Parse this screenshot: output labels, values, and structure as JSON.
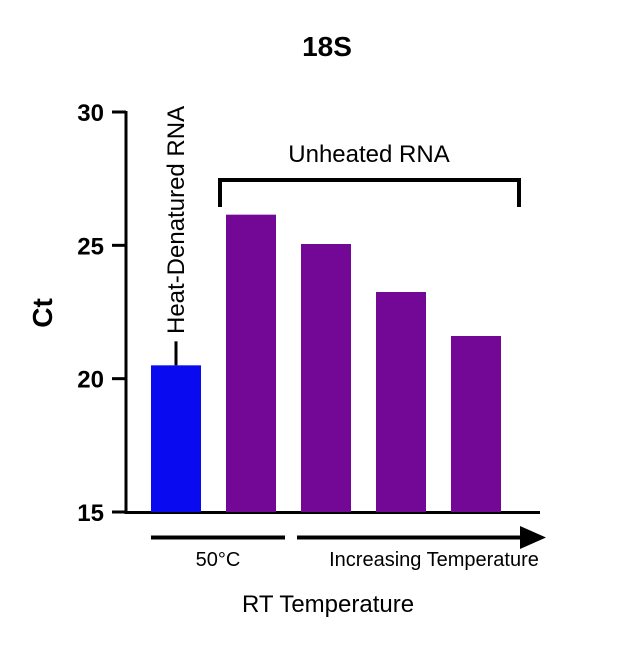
{
  "chart_data": {
    "type": "bar",
    "title": "18S",
    "ylabel": "Ct",
    "xlabel": "RT Temperature",
    "ylim": [
      15,
      30
    ],
    "yticks": [
      "15",
      "20",
      "25",
      "30"
    ],
    "values": [
      20.5,
      26.15,
      25.05,
      23.25,
      21.6
    ],
    "error_upper": [
      21.4,
      null,
      null,
      null,
      null
    ],
    "colors": [
      "#0a0af0",
      "#730896",
      "#730896",
      "#730896",
      "#730896"
    ],
    "annotations": {
      "heat_denatured": "Heat-Denatured RNA",
      "unheated": "Unheated RNA"
    },
    "x_groups": {
      "left": "50°C",
      "right": "Increasing Temperature"
    },
    "grid": false
  }
}
